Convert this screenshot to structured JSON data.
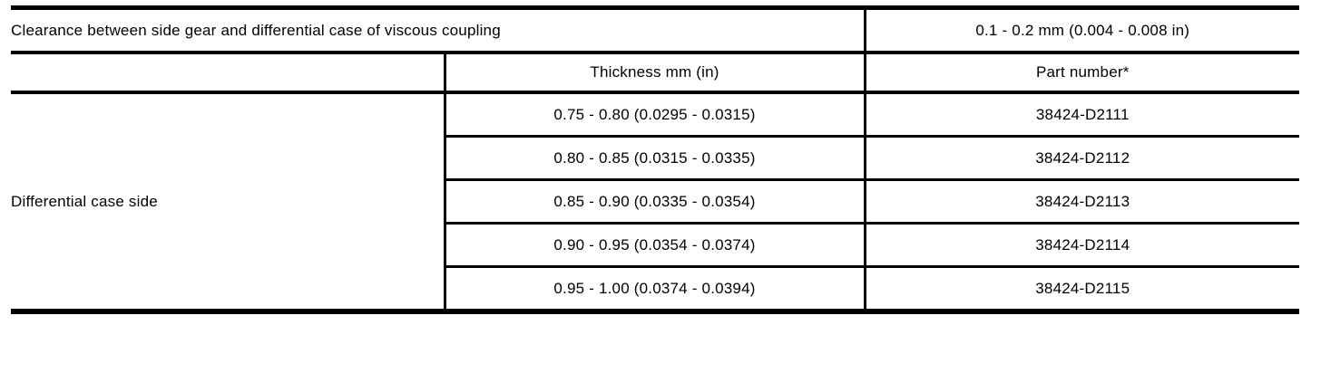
{
  "table": {
    "clearance_row": {
      "label": "Clearance between side gear and differential case of viscous coupling",
      "value": "0.1 - 0.2 mm (0.004 - 0.008 in)"
    },
    "header": {
      "thickness": "Thickness mm (in)",
      "part_number": "Part number*"
    },
    "group_label": "Differential case side",
    "rows": [
      {
        "thickness": "0.75 - 0.80 (0.0295 - 0.0315)",
        "part_number": "38424-D2111"
      },
      {
        "thickness": "0.80 - 0.85 (0.0315 - 0.0335)",
        "part_number": "38424-D2112"
      },
      {
        "thickness": "0.85 - 0.90 (0.0335 - 0.0354)",
        "part_number": "38424-D2113"
      },
      {
        "thickness": "0.90 - 0.95 (0.0354 - 0.0374)",
        "part_number": "38424-D2114"
      },
      {
        "thickness": "0.95 - 1.00 (0.0374 - 0.0394)",
        "part_number": "38424-D2115"
      }
    ],
    "colors": {
      "line": "#000000",
      "background": "#ffffff",
      "text": "#000000"
    }
  }
}
